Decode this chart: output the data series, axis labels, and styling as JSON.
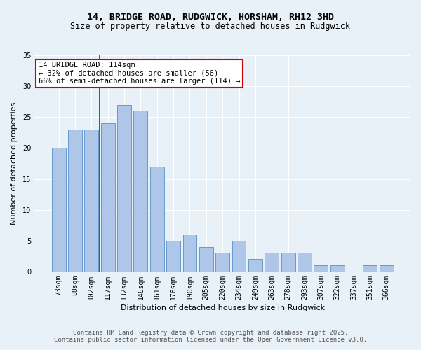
{
  "title_line1": "14, BRIDGE ROAD, RUDGWICK, HORSHAM, RH12 3HD",
  "title_line2": "Size of property relative to detached houses in Rudgwick",
  "xlabel": "Distribution of detached houses by size in Rudgwick",
  "ylabel": "Number of detached properties",
  "categories": [
    "73sqm",
    "88sqm",
    "102sqm",
    "117sqm",
    "132sqm",
    "146sqm",
    "161sqm",
    "176sqm",
    "190sqm",
    "205sqm",
    "220sqm",
    "234sqm",
    "249sqm",
    "263sqm",
    "278sqm",
    "293sqm",
    "307sqm",
    "322sqm",
    "337sqm",
    "351sqm",
    "366sqm"
  ],
  "values": [
    20,
    23,
    23,
    24,
    27,
    26,
    17,
    5,
    6,
    4,
    3,
    5,
    2,
    3,
    3,
    3,
    1,
    1,
    0,
    1,
    1
  ],
  "bar_color": "#aec6e8",
  "bar_edge_color": "#6699cc",
  "vline_color": "#cc0000",
  "annotation_text": "14 BRIDGE ROAD: 114sqm\n← 32% of detached houses are smaller (56)\n66% of semi-detached houses are larger (114) →",
  "annotation_box_color": "white",
  "annotation_box_edge": "#cc0000",
  "ylim": [
    0,
    35
  ],
  "yticks": [
    0,
    5,
    10,
    15,
    20,
    25,
    30,
    35
  ],
  "bg_color": "#e8f0f8",
  "footer_line1": "Contains HM Land Registry data © Crown copyright and database right 2025.",
  "footer_line2": "Contains public sector information licensed under the Open Government Licence v3.0.",
  "title_fontsize": 9.5,
  "subtitle_fontsize": 8.5,
  "axis_label_fontsize": 8,
  "tick_fontsize": 7,
  "annotation_fontsize": 7.5,
  "footer_fontsize": 6.5
}
